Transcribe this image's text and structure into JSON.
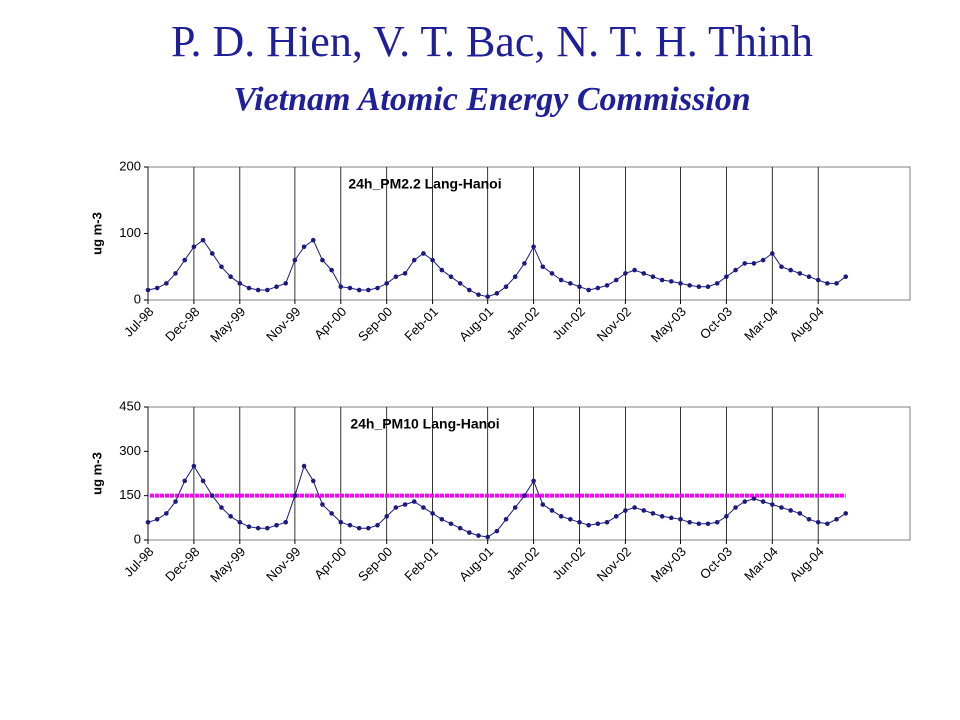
{
  "header": {
    "title": "P. D. Hien, V. T. Bac, N. T. H. Thinh",
    "subtitle": "Vietnam Atomic Energy Commission"
  },
  "chart_data": [
    {
      "type": "line",
      "title": "24h_PM2.2 Lang-Hanoi",
      "y_label": "ug m-3",
      "x": [
        "1998-07",
        "1998-08",
        "1998-09",
        "1998-10",
        "1998-11",
        "1998-12",
        "1999-01",
        "1999-02",
        "1999-03",
        "1999-04",
        "1999-05",
        "1999-06",
        "1999-07",
        "1999-08",
        "1999-09",
        "1999-10",
        "1999-11",
        "1999-12",
        "2000-01",
        "2000-02",
        "2000-03",
        "2000-04",
        "2000-05",
        "2000-06",
        "2000-07",
        "2000-08",
        "2000-09",
        "2000-10",
        "2000-11",
        "2000-12",
        "2001-01",
        "2001-02",
        "2001-03",
        "2001-04",
        "2001-05",
        "2001-06",
        "2001-07",
        "2001-08",
        "2001-09",
        "2001-10",
        "2001-11",
        "2001-12",
        "2002-01",
        "2002-02",
        "2002-03",
        "2002-04",
        "2002-05",
        "2002-06",
        "2002-07",
        "2002-08",
        "2002-09",
        "2002-10",
        "2002-11",
        "2002-12",
        "2003-01",
        "2003-02",
        "2003-03",
        "2003-04",
        "2003-05",
        "2003-06",
        "2003-07",
        "2003-08",
        "2003-09",
        "2003-10",
        "2003-11",
        "2003-12",
        "2004-01",
        "2004-02",
        "2004-03",
        "2004-04",
        "2004-05",
        "2004-06",
        "2004-07",
        "2004-08",
        "2004-09",
        "2004-10",
        "2004-11"
      ],
      "series": [
        {
          "color": "#1a1a80",
          "values": [
            15,
            18,
            25,
            40,
            60,
            80,
            90,
            70,
            50,
            35,
            25,
            18,
            15,
            15,
            20,
            25,
            60,
            80,
            90,
            60,
            45,
            20,
            18,
            15,
            15,
            18,
            25,
            35,
            40,
            60,
            70,
            60,
            45,
            35,
            25,
            15,
            8,
            5,
            10,
            20,
            35,
            55,
            80,
            50,
            40,
            30,
            25,
            20,
            15,
            18,
            22,
            30,
            40,
            45,
            40,
            35,
            30,
            28,
            25,
            22,
            20,
            20,
            25,
            35,
            45,
            55,
            55,
            60,
            70,
            50,
            45,
            40,
            35,
            30,
            25,
            25,
            35
          ]
        }
      ],
      "xlim": [
        "1998-07",
        "2005-06"
      ],
      "xticks": [
        {
          "value": "1998-07",
          "label": "Jul-98"
        },
        {
          "value": "1998-12",
          "label": "Dec-98"
        },
        {
          "value": "1999-05",
          "label": "May-99"
        },
        {
          "value": "1999-11",
          "label": "Nov-99"
        },
        {
          "value": "2000-04",
          "label": "Apr-00"
        },
        {
          "value": "2000-09",
          "label": "Sep-00"
        },
        {
          "value": "2001-02",
          "label": "Feb-01"
        },
        {
          "value": "2001-08",
          "label": "Aug-01"
        },
        {
          "value": "2002-01",
          "label": "Jan-02"
        },
        {
          "value": "2002-06",
          "label": "Jun-02"
        },
        {
          "value": "2002-11",
          "label": "Nov-02"
        },
        {
          "value": "2003-05",
          "label": "May-03"
        },
        {
          "value": "2003-10",
          "label": "Oct-03"
        },
        {
          "value": "2004-03",
          "label": "Mar-04"
        },
        {
          "value": "2004-08",
          "label": "Aug-04"
        }
      ],
      "ylim": [
        0,
        200
      ],
      "yticks": [
        0,
        100,
        200
      ],
      "grid": true
    },
    {
      "type": "line",
      "title": "24h_PM10 Lang-Hanoi",
      "y_label": "ug m-3",
      "x": [
        "1998-07",
        "1998-08",
        "1998-09",
        "1998-10",
        "1998-11",
        "1998-12",
        "1999-01",
        "1999-02",
        "1999-03",
        "1999-04",
        "1999-05",
        "1999-06",
        "1999-07",
        "1999-08",
        "1999-09",
        "1999-10",
        "1999-11",
        "1999-12",
        "2000-01",
        "2000-02",
        "2000-03",
        "2000-04",
        "2000-05",
        "2000-06",
        "2000-07",
        "2000-08",
        "2000-09",
        "2000-10",
        "2000-11",
        "2000-12",
        "2001-01",
        "2001-02",
        "2001-03",
        "2001-04",
        "2001-05",
        "2001-06",
        "2001-07",
        "2001-08",
        "2001-09",
        "2001-10",
        "2001-11",
        "2001-12",
        "2002-01",
        "2002-02",
        "2002-03",
        "2002-04",
        "2002-05",
        "2002-06",
        "2002-07",
        "2002-08",
        "2002-09",
        "2002-10",
        "2002-11",
        "2002-12",
        "2003-01",
        "2003-02",
        "2003-03",
        "2003-04",
        "2003-05",
        "2003-06",
        "2003-07",
        "2003-08",
        "2003-09",
        "2003-10",
        "2003-11",
        "2003-12",
        "2004-01",
        "2004-02",
        "2004-03",
        "2004-04",
        "2004-05",
        "2004-06",
        "2004-07",
        "2004-08",
        "2004-09",
        "2004-10",
        "2004-11"
      ],
      "series": [
        {
          "color": "#1a1a80",
          "values": [
            60,
            70,
            90,
            130,
            200,
            250,
            200,
            150,
            110,
            80,
            60,
            45,
            40,
            40,
            50,
            60,
            150,
            250,
            200,
            120,
            90,
            60,
            50,
            40,
            40,
            50,
            80,
            110,
            120,
            130,
            110,
            90,
            70,
            55,
            40,
            25,
            15,
            10,
            30,
            70,
            110,
            150,
            200,
            120,
            100,
            80,
            70,
            60,
            50,
            55,
            60,
            80,
            100,
            110,
            100,
            90,
            80,
            75,
            70,
            60,
            55,
            55,
            60,
            80,
            110,
            130,
            140,
            130,
            120,
            110,
            100,
            90,
            70,
            60,
            55,
            70,
            90
          ]
        }
      ],
      "hline": {
        "value": 150,
        "color": "#ff00ff"
      },
      "xlim": [
        "1998-07",
        "2005-06"
      ],
      "xticks": [
        {
          "value": "1998-07",
          "label": "Jul-98"
        },
        {
          "value": "1998-12",
          "label": "Dec-98"
        },
        {
          "value": "1999-05",
          "label": "May-99"
        },
        {
          "value": "1999-11",
          "label": "Nov-99"
        },
        {
          "value": "2000-04",
          "label": "Apr-00"
        },
        {
          "value": "2000-09",
          "label": "Sep-00"
        },
        {
          "value": "2001-02",
          "label": "Feb-01"
        },
        {
          "value": "2001-08",
          "label": "Aug-01"
        },
        {
          "value": "2002-01",
          "label": "Jan-02"
        },
        {
          "value": "2002-06",
          "label": "Jun-02"
        },
        {
          "value": "2002-11",
          "label": "Nov-02"
        },
        {
          "value": "2003-05",
          "label": "May-03"
        },
        {
          "value": "2003-10",
          "label": "Oct-03"
        },
        {
          "value": "2004-03",
          "label": "Mar-04"
        },
        {
          "value": "2004-08",
          "label": "Aug-04"
        }
      ],
      "ylim": [
        0,
        450
      ],
      "yticks": [
        0,
        150,
        300,
        450
      ],
      "grid": true
    }
  ]
}
